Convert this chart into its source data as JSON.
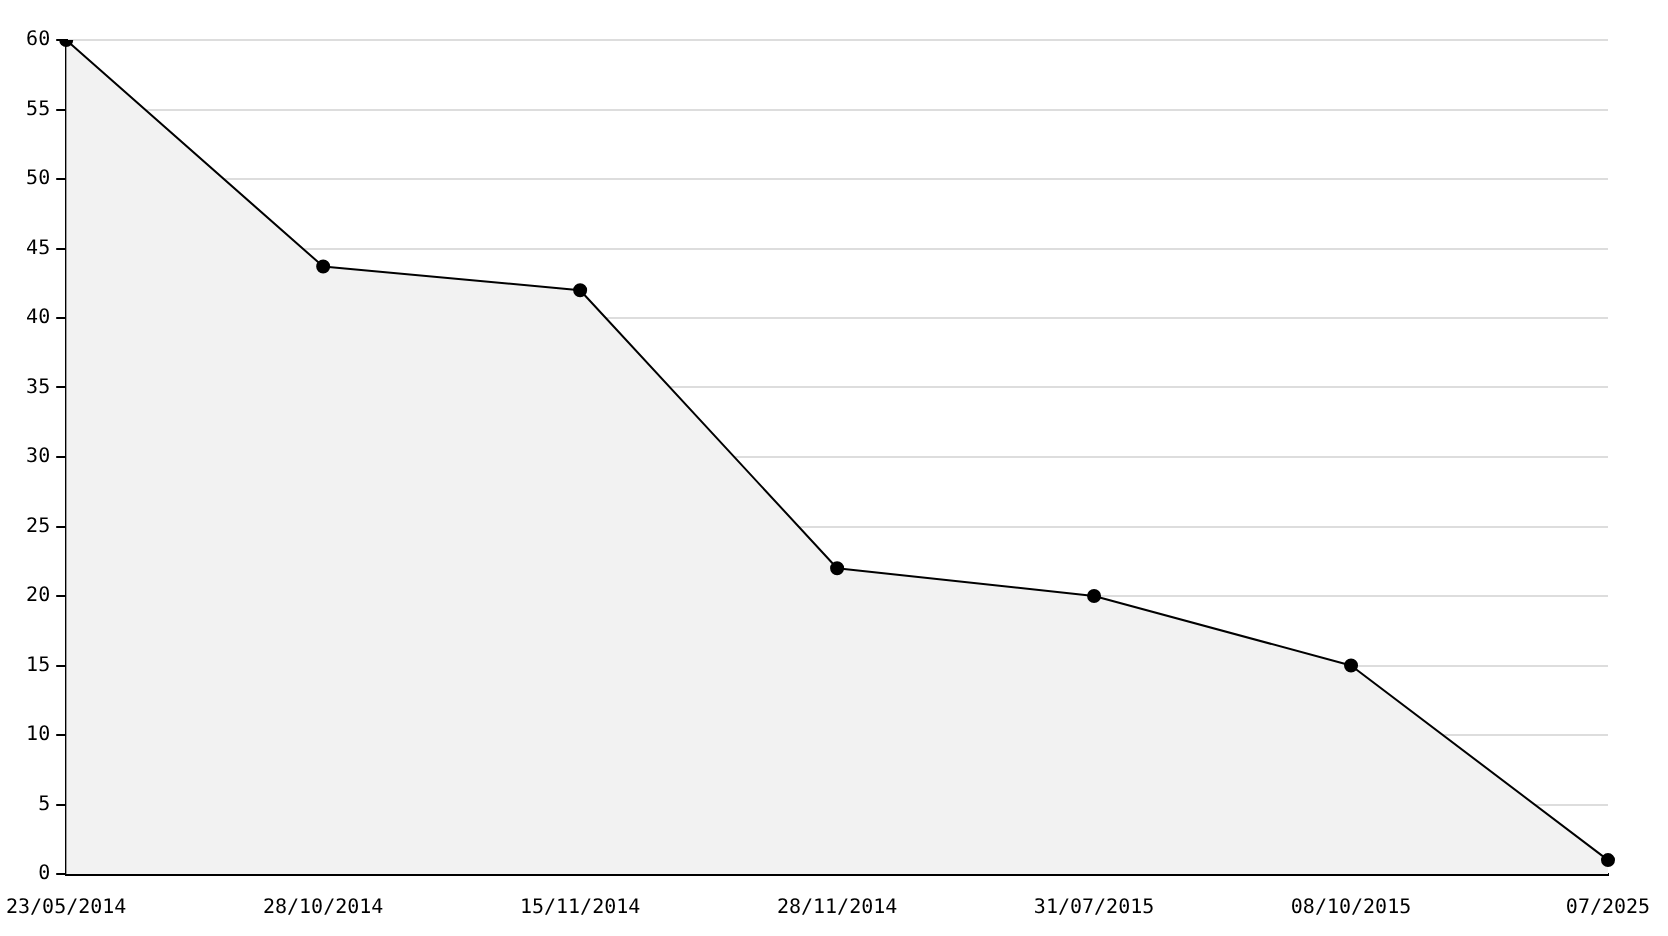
{
  "chart_data": {
    "type": "area",
    "categories": [
      "23/05/2014",
      "28/10/2014",
      "15/11/2014",
      "28/11/2014",
      "31/07/2015",
      "08/10/2015",
      "07/2025"
    ],
    "series": [
      {
        "color": "#000000",
        "values": [
          60,
          43.7,
          42,
          22,
          20,
          15,
          1
        ]
      }
    ],
    "ylim": [
      0,
      60
    ],
    "yticks": [
      0,
      5,
      10,
      15,
      20,
      25,
      30,
      35,
      40,
      45,
      50,
      55,
      60
    ],
    "grid": "y",
    "legend": false,
    "marker": "circle",
    "line_style": "solid"
  }
}
